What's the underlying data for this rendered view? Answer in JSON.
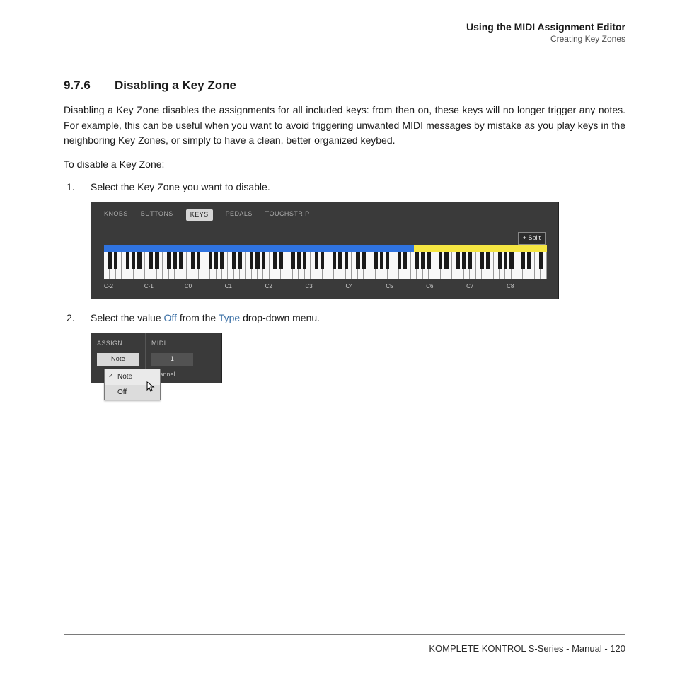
{
  "header": {
    "title": "Using the MIDI Assignment Editor",
    "subtitle": "Creating Key Zones"
  },
  "section": {
    "number": "9.7.6",
    "title": "Disabling a Key Zone"
  },
  "paragraph": "Disabling a Key Zone disables the assignments for all included keys: from then on, these keys will no longer trigger any notes. For example, this can be useful when you want to avoid triggering unwanted MIDI messages by mistake as you play keys in the neighboring Key Zones, or simply to have a clean, better organized keybed.",
  "lead": "To disable a Key Zone:",
  "steps": {
    "s1": "Select the Key Zone you want to disable.",
    "s2_a": "Select the value ",
    "s2_off": "Off",
    "s2_b": " from the ",
    "s2_type": "Type",
    "s2_c": " drop-down menu."
  },
  "kb_fig": {
    "tabs": {
      "t0": "KNOBS",
      "t1": "BUTTONS",
      "t2": "KEYS",
      "t3": "PEDALS",
      "t4": "TOUCHSTRIP"
    },
    "split_btn": "+ Split",
    "zone_blue_color": "#2f73e0",
    "zone_yellow_color": "#f5e642",
    "zone_blue_pct": 70,
    "zone_yellow_pct": 30,
    "white_key_count": 75,
    "bg": "#3a3a3a",
    "labels": {
      "l0": "C-2",
      "l1": "C-1",
      "l2": "C0",
      "l3": "C1",
      "l4": "C2",
      "l5": "C3",
      "l6": "C4",
      "l7": "C5",
      "l8": "C6",
      "l9": "C7",
      "l10": "C8"
    }
  },
  "as_fig": {
    "col1": "ASSIGN",
    "col2": "MIDI",
    "sel1": "Note",
    "sel2": "1",
    "lbl2": "Channel",
    "dd": {
      "i0": "Note",
      "i1": "Off"
    },
    "bg": "#3a3a3a",
    "dd_bg": "#eaeaea"
  },
  "footer": "KOMPLETE KONTROL S-Series - Manual - 120"
}
